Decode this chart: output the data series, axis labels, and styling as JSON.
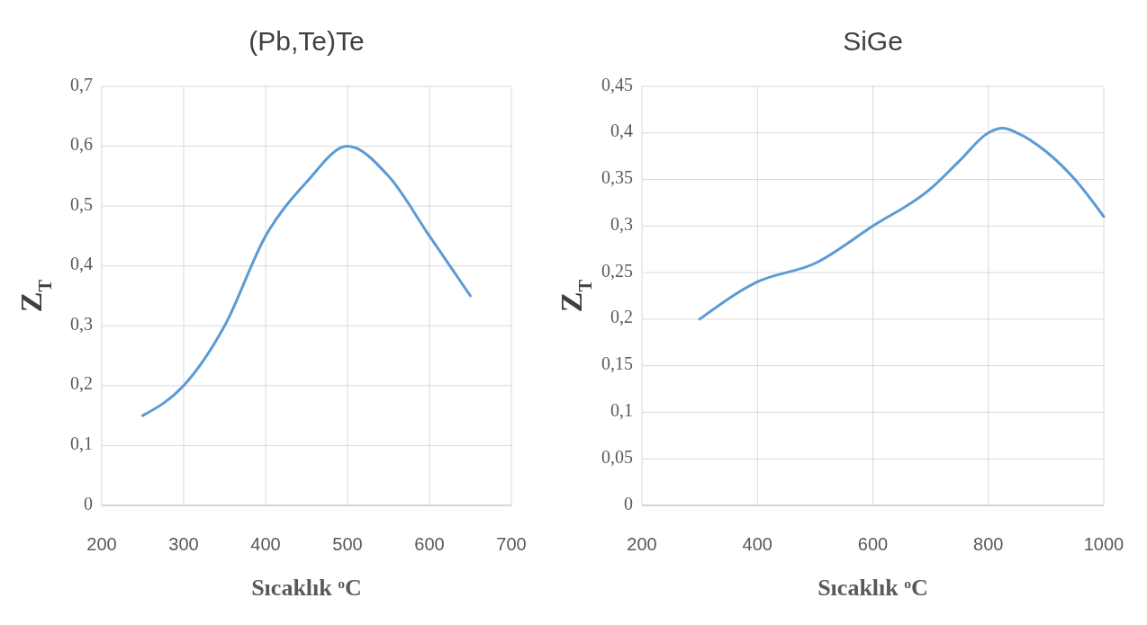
{
  "chart_data": [
    {
      "type": "line",
      "title": "(Pb,Te)Te",
      "xlabel": "Sıcaklık $^{o}$C",
      "ylabel": "Z$_{T}$",
      "grid": true,
      "line_style": "solid",
      "xlim": [
        200,
        700
      ],
      "xticks": [
        200,
        300,
        400,
        500,
        600,
        700
      ],
      "ylim": [
        0,
        0.7
      ],
      "yticks": [
        0,
        {
          "value": 0.1,
          "label": "0,1"
        },
        {
          "value": 0.2,
          "label": "0,2"
        },
        {
          "value": 0.3,
          "label": "0,3"
        },
        {
          "value": 0.4,
          "label": "0,4"
        },
        {
          "value": 0.5,
          "label": "0,5"
        },
        {
          "value": 0.6,
          "label": "0,6"
        },
        {
          "value": 0.7,
          "label": "0,7"
        }
      ],
      "series": [
        {
          "color": "#5b9bd5",
          "x": [
            250,
            300,
            350,
            400,
            450,
            500,
            550,
            600,
            650
          ],
          "values": [
            0.15,
            0.2,
            0.3,
            0.45,
            0.54,
            0.6,
            0.55,
            0.45,
            0.35
          ]
        }
      ]
    },
    {
      "type": "line",
      "title": "SiGe",
      "xlabel": "Sıcaklık $^{o}$C",
      "ylabel": "Z$_{T}$",
      "grid": true,
      "line_style": "solid",
      "xlim": [
        200,
        1000
      ],
      "xticks": [
        200,
        400,
        600,
        800,
        1000
      ],
      "ylim": [
        0,
        0.45
      ],
      "yticks": [
        0,
        {
          "value": 0.05,
          "label": "0,05"
        },
        {
          "value": 0.1,
          "label": "0,1"
        },
        {
          "value": 0.15,
          "label": "0,15"
        },
        {
          "value": 0.2,
          "label": "0,2"
        },
        {
          "value": 0.25,
          "label": "0,25"
        },
        {
          "value": 0.3,
          "label": "0,3"
        },
        {
          "value": 0.35,
          "label": "0,35"
        },
        {
          "value": 0.4,
          "label": "0,4"
        },
        {
          "value": 0.45,
          "label": "0,45"
        }
      ],
      "series": [
        {
          "color": "#5b9bd5",
          "x": [
            300,
            400,
            500,
            600,
            700,
            750,
            800,
            825,
            850,
            900,
            950,
            1000
          ],
          "values": [
            0.2,
            0.24,
            0.26,
            0.3,
            0.34,
            0.37,
            0.4,
            0.405,
            0.4,
            0.38,
            0.35,
            0.31
          ]
        }
      ]
    }
  ]
}
